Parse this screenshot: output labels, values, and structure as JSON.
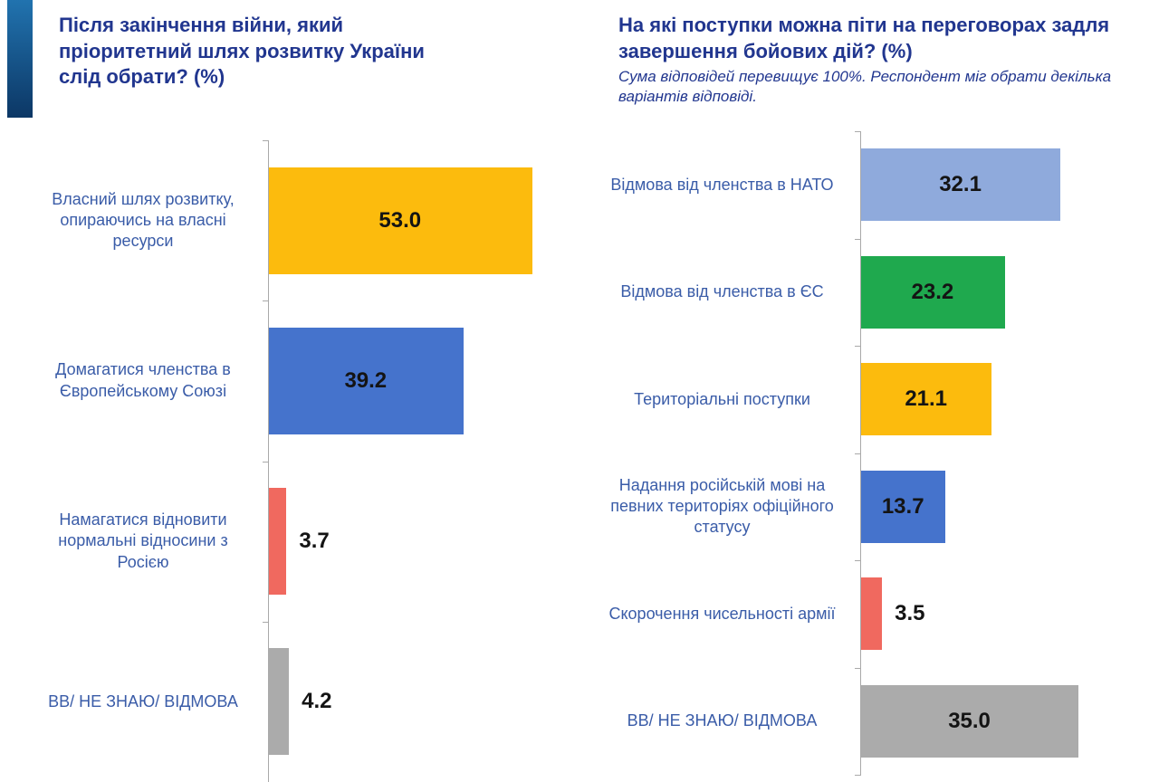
{
  "palette": {
    "background": "#FFFFFF",
    "title_color": "#21368F",
    "category_label_color": "#3A5CA8",
    "value_label_color": "#141414",
    "axis_color": "#A9A9A9",
    "decoration_top": "#2173AF",
    "decoration_bottom": "#0C3765"
  },
  "chart_data": [
    {
      "type": "bar",
      "orientation": "horizontal",
      "title": "Після закінчення війни, який пріоритетний шлях розвитку України слід обрати? (%)",
      "categories": [
        "Власний шлях розвитку, опираючись на власні ресурси",
        "Домагатися членства в Європейському Союзі",
        "Намагатися відновити нормальні відносини з Росією",
        "ВВ/ НЕ ЗНАЮ/ ВІДМОВА"
      ],
      "values": [
        53.0,
        39.2,
        3.7,
        4.2
      ],
      "value_labels": [
        "53.0",
        "39.2",
        "3.7",
        "4.2"
      ],
      "bar_colors": [
        "#FCBB0D",
        "#4573CC",
        "#F0695F",
        "#ABABAB"
      ],
      "xlim": [
        0,
        60
      ],
      "grid": false,
      "legend": false
    },
    {
      "type": "bar",
      "orientation": "horizontal",
      "title": "На які поступки можна піти на переговорах задля завершення бойових дій? (%)",
      "subtitle": "Сума відповідей перевищує 100%. Респондент міг обрати декілька варіантів відповіді.",
      "categories": [
        "Відмова від членства в НАТО",
        "Відмова від членства в ЄС",
        "Територіальні поступки",
        "Надання російській мові на певних територіях офіційного статусу",
        "Скорочення чисельності армії",
        "ВВ/ НЕ ЗНАЮ/ ВІДМОВА"
      ],
      "values": [
        32.1,
        23.2,
        21.1,
        13.7,
        3.5,
        35.0
      ],
      "value_labels": [
        "32.1",
        "23.2",
        "21.1",
        "13.7",
        "3.5",
        "35.0"
      ],
      "bar_colors": [
        "#8FAADC",
        "#1FA94E",
        "#FCBB0D",
        "#4573CC",
        "#F0695F",
        "#ABABAB"
      ],
      "xlim": [
        0,
        45
      ],
      "grid": false,
      "legend": false
    }
  ]
}
